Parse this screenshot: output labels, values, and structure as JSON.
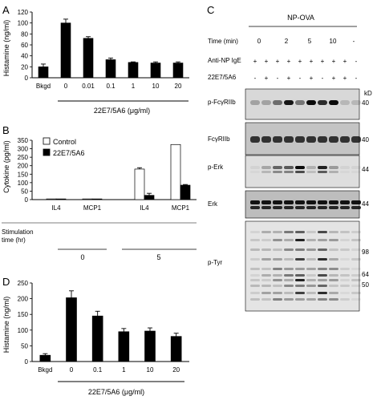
{
  "panels": {
    "A": {
      "letter": "A",
      "ylabel": "Histamine (ng/ml)",
      "footer": "22E7/5A6 (μg/ml)",
      "chart_data": {
        "type": "bar",
        "categories": [
          "Bkgd",
          "0",
          "0.01",
          "0.1",
          "1",
          "10",
          "20"
        ],
        "values": [
          20,
          100,
          72,
          33,
          28,
          27,
          27
        ],
        "errors": [
          5,
          7,
          3,
          3,
          1,
          2,
          2
        ],
        "yticks": [
          "0",
          "20",
          "40",
          "60",
          "80",
          "100",
          "120"
        ],
        "ylim": [
          0,
          120
        ],
        "bar_color": "#000000"
      }
    },
    "B": {
      "letter": "B",
      "ylabel": "Cytokine (pg/ml)",
      "legend": [
        "Control",
        "22E7/5A6"
      ],
      "stim_label_1": "Stimulation",
      "stim_label_2": "time (hr)",
      "time_values": [
        "0",
        "5"
      ],
      "chart_data": {
        "type": "bar",
        "categories": [
          "IL4",
          "MCP1",
          "IL4",
          "MCP1"
        ],
        "series": [
          {
            "name": "Control",
            "values": [
              4,
              4,
              180,
              325
            ],
            "errors": [
              0,
              0,
              8,
              0
            ],
            "color": "#ffffff"
          },
          {
            "name": "22E7/5A6",
            "values": [
              4,
              4,
              25,
              85
            ],
            "errors": [
              0,
              0,
              12,
              4
            ],
            "color": "#000000"
          }
        ],
        "yticks": [
          "0",
          "50",
          "100",
          "150",
          "200",
          "250",
          "300",
          "350"
        ],
        "ylim": [
          0,
          350
        ]
      }
    },
    "C": {
      "letter": "C",
      "treatment": "NP-OVA",
      "time_label": "Time (min)",
      "time_points": [
        "0",
        "2",
        "5",
        "10",
        "-"
      ],
      "row_labels": [
        "Anti-NP IgE",
        "22E7/5A6"
      ],
      "ige_signs": [
        "+",
        "+",
        "+",
        "+",
        "+",
        "+",
        "+",
        "+",
        "+",
        "-"
      ],
      "mab_signs": [
        "-",
        "+",
        "-",
        "+",
        "-",
        "+",
        "-",
        "+",
        "+",
        "-"
      ],
      "kd_label": "kD",
      "blots": [
        {
          "label": "p-FcγRIIb",
          "marker": "40"
        },
        {
          "label": "FcγRIIb",
          "marker": "40"
        },
        {
          "label": "p-Erk",
          "marker": "44"
        },
        {
          "label": "Erk",
          "marker": "44"
        },
        {
          "label": "p-Tyr",
          "markers": [
            "98",
            "64",
            "50"
          ]
        }
      ]
    },
    "D": {
      "letter": "D",
      "ylabel": "Histamine (ng/ml)",
      "footer": "22E7/5A6 (μg/ml)",
      "chart_data": {
        "type": "bar",
        "categories": [
          "Bkgd",
          "0",
          "0.1",
          "1",
          "10",
          "20"
        ],
        "values": [
          20,
          203,
          145,
          95,
          97,
          80
        ],
        "errors": [
          5,
          22,
          15,
          10,
          10,
          10
        ],
        "yticks": [
          "0",
          "50",
          "100",
          "150",
          "200",
          "250"
        ],
        "ylim": [
          0,
          250
        ],
        "bar_color": "#000000"
      }
    }
  }
}
